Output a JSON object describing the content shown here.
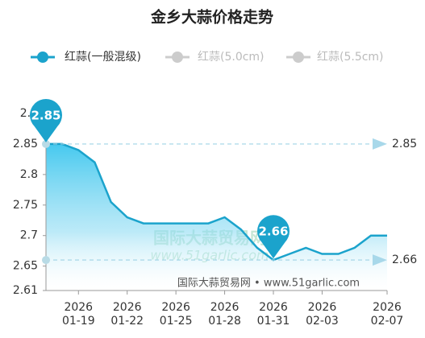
{
  "chart_data": {
    "type": "line",
    "title": "金乡大蒜价格走势",
    "x": [
      "2026-01-17",
      "2026-01-18",
      "2026-01-19",
      "2026-01-20",
      "2026-01-21",
      "2026-01-22",
      "2026-01-23",
      "2026-01-24",
      "2026-01-25",
      "2026-01-26",
      "2026-01-27",
      "2026-01-28",
      "2026-01-29",
      "2026-01-30",
      "2026-01-31",
      "2026-02-01",
      "2026-02-02",
      "2026-02-03",
      "2026-02-04",
      "2026-02-05",
      "2026-02-06",
      "2026-02-07"
    ],
    "series": [
      {
        "name": "红蒜(一般混级)",
        "color": "#1ba3cc",
        "visible": true,
        "values": [
          2.85,
          2.85,
          2.84,
          2.82,
          2.755,
          2.73,
          2.72,
          2.72,
          2.72,
          2.72,
          2.72,
          2.73,
          2.71,
          2.68,
          2.66,
          2.67,
          2.68,
          2.67,
          2.67,
          2.68,
          2.7,
          2.7
        ]
      },
      {
        "name": "红蒜(5.0cm)",
        "color": "#cccccc",
        "visible": false
      },
      {
        "name": "红蒜(5.5cm)",
        "color": "#cccccc",
        "visible": false
      }
    ],
    "xlim": [
      "2026-01-17",
      "2026-02-07"
    ],
    "xticks": [
      "2026-01-19",
      "2026-01-22",
      "2026-01-25",
      "2026-01-28",
      "2026-01-31",
      "2026-02-03",
      "2026-02-07"
    ],
    "ylim": [
      2.61,
      2.9
    ],
    "yticks": [
      2.61,
      2.65,
      2.7,
      2.75,
      2.8,
      2.85,
      2.9
    ],
    "mark_points": [
      0,
      14
    ],
    "mark_lines": [
      2.85,
      2.66
    ],
    "watermark": [
      "国际大蒜贸易网",
      "www.51garlic.com"
    ],
    "source": "国际大蒜贸易网 • www.51garlic.com"
  }
}
